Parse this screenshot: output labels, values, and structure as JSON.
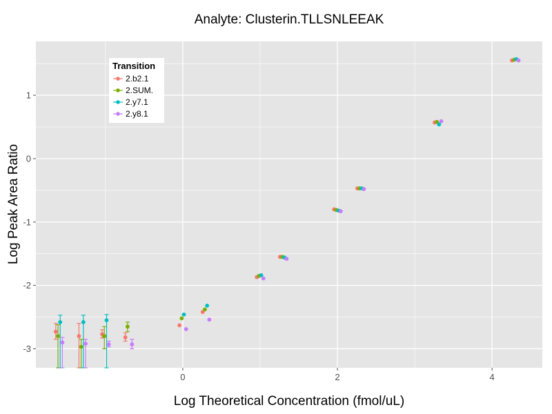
{
  "chart_data": {
    "type": "scatter",
    "title": "Analyte: Clusterin.TLLSNLEEAK",
    "xlabel": "Log Theoretical Concentration (fmol/uL)",
    "ylabel": "Log Peak Area Ratio",
    "xlim": [
      -1.9,
      4.65
    ],
    "ylim": [
      -3.3,
      1.85
    ],
    "x_ticks": [
      0,
      2,
      4
    ],
    "x_tick_labels": [
      "0",
      "2",
      "4"
    ],
    "y_ticks": [
      -3,
      -2,
      -1,
      0,
      1
    ],
    "y_tick_labels": [
      "-3",
      "-2",
      "-1",
      "0",
      "1"
    ],
    "grid": true,
    "legend": {
      "title": "Transition",
      "position": "top-left"
    },
    "colors": {
      "panel_background": "#e5e5e5",
      "grid": "#ffffff"
    },
    "series": [
      {
        "name": "2.b2.1",
        "color": "#f8766d",
        "points": [
          {
            "x": -1.6,
            "y": -2.73,
            "lo": -2.85,
            "hi": -2.6
          },
          {
            "x": -1.3,
            "y": -2.8,
            "lo": -3.3,
            "hi": -2.6
          },
          {
            "x": -1.0,
            "y": -2.77,
            "lo": -2.83,
            "hi": -2.7
          },
          {
            "x": -0.7,
            "y": -2.82,
            "lo": -2.88,
            "hi": -2.75
          },
          {
            "x": 0.0,
            "y": -2.63
          },
          {
            "x": 0.3,
            "y": -2.42
          },
          {
            "x": 1.0,
            "y": -1.87
          },
          {
            "x": 1.3,
            "y": -1.55
          },
          {
            "x": 2.0,
            "y": -0.8
          },
          {
            "x": 2.3,
            "y": -0.47
          },
          {
            "x": 3.3,
            "y": 0.57
          },
          {
            "x": 4.3,
            "y": 1.55
          }
        ]
      },
      {
        "name": "2.SUM.",
        "color": "#7cae00",
        "points": [
          {
            "x": -1.6,
            "y": -2.8,
            "lo": -3.3,
            "hi": -2.62
          },
          {
            "x": -1.3,
            "y": -2.97,
            "lo": -3.3,
            "hi": -2.85
          },
          {
            "x": -1.0,
            "y": -2.8,
            "lo": -3.0,
            "hi": -2.65
          },
          {
            "x": -0.7,
            "y": -2.65,
            "lo": -2.73,
            "hi": -2.58
          },
          {
            "x": 0.0,
            "y": -2.52
          },
          {
            "x": 0.3,
            "y": -2.38
          },
          {
            "x": 1.0,
            "y": -1.85
          },
          {
            "x": 1.3,
            "y": -1.55
          },
          {
            "x": 2.0,
            "y": -0.81
          },
          {
            "x": 2.3,
            "y": -0.47
          },
          {
            "x": 3.3,
            "y": 0.58
          },
          {
            "x": 4.3,
            "y": 1.56
          }
        ]
      },
      {
        "name": "2.y7.1",
        "color": "#00bfc4",
        "points": [
          {
            "x": -1.6,
            "y": -2.58,
            "lo": -3.3,
            "hi": -2.47
          },
          {
            "x": -1.3,
            "y": -2.58,
            "lo": -3.3,
            "hi": -2.47
          },
          {
            "x": -1.0,
            "y": -2.55,
            "lo": -3.3,
            "hi": -2.46
          },
          {
            "x": 0.0,
            "y": -2.46
          },
          {
            "x": 0.3,
            "y": -2.32
          },
          {
            "x": 1.0,
            "y": -1.84
          },
          {
            "x": 1.3,
            "y": -1.56
          },
          {
            "x": 2.0,
            "y": -0.82
          },
          {
            "x": 2.3,
            "y": -0.47
          },
          {
            "x": 3.3,
            "y": 0.54
          },
          {
            "x": 4.3,
            "y": 1.57
          }
        ]
      },
      {
        "name": "2.y8.1",
        "color": "#c77cff",
        "points": [
          {
            "x": -1.6,
            "y": -2.9,
            "lo": -3.3,
            "hi": -2.82
          },
          {
            "x": -1.3,
            "y": -2.92,
            "lo": -3.3,
            "hi": -2.85
          },
          {
            "x": -1.0,
            "y": -2.93,
            "lo": -2.97,
            "hi": -2.88
          },
          {
            "x": -0.7,
            "y": -2.93,
            "lo": -3.0,
            "hi": -2.85
          },
          {
            "x": 0.0,
            "y": -2.69
          },
          {
            "x": 0.3,
            "y": -2.54
          },
          {
            "x": 1.0,
            "y": -1.89
          },
          {
            "x": 1.3,
            "y": -1.58
          },
          {
            "x": 2.0,
            "y": -0.83
          },
          {
            "x": 2.3,
            "y": -0.48
          },
          {
            "x": 3.3,
            "y": 0.59
          },
          {
            "x": 4.3,
            "y": 1.55
          }
        ]
      }
    ]
  }
}
